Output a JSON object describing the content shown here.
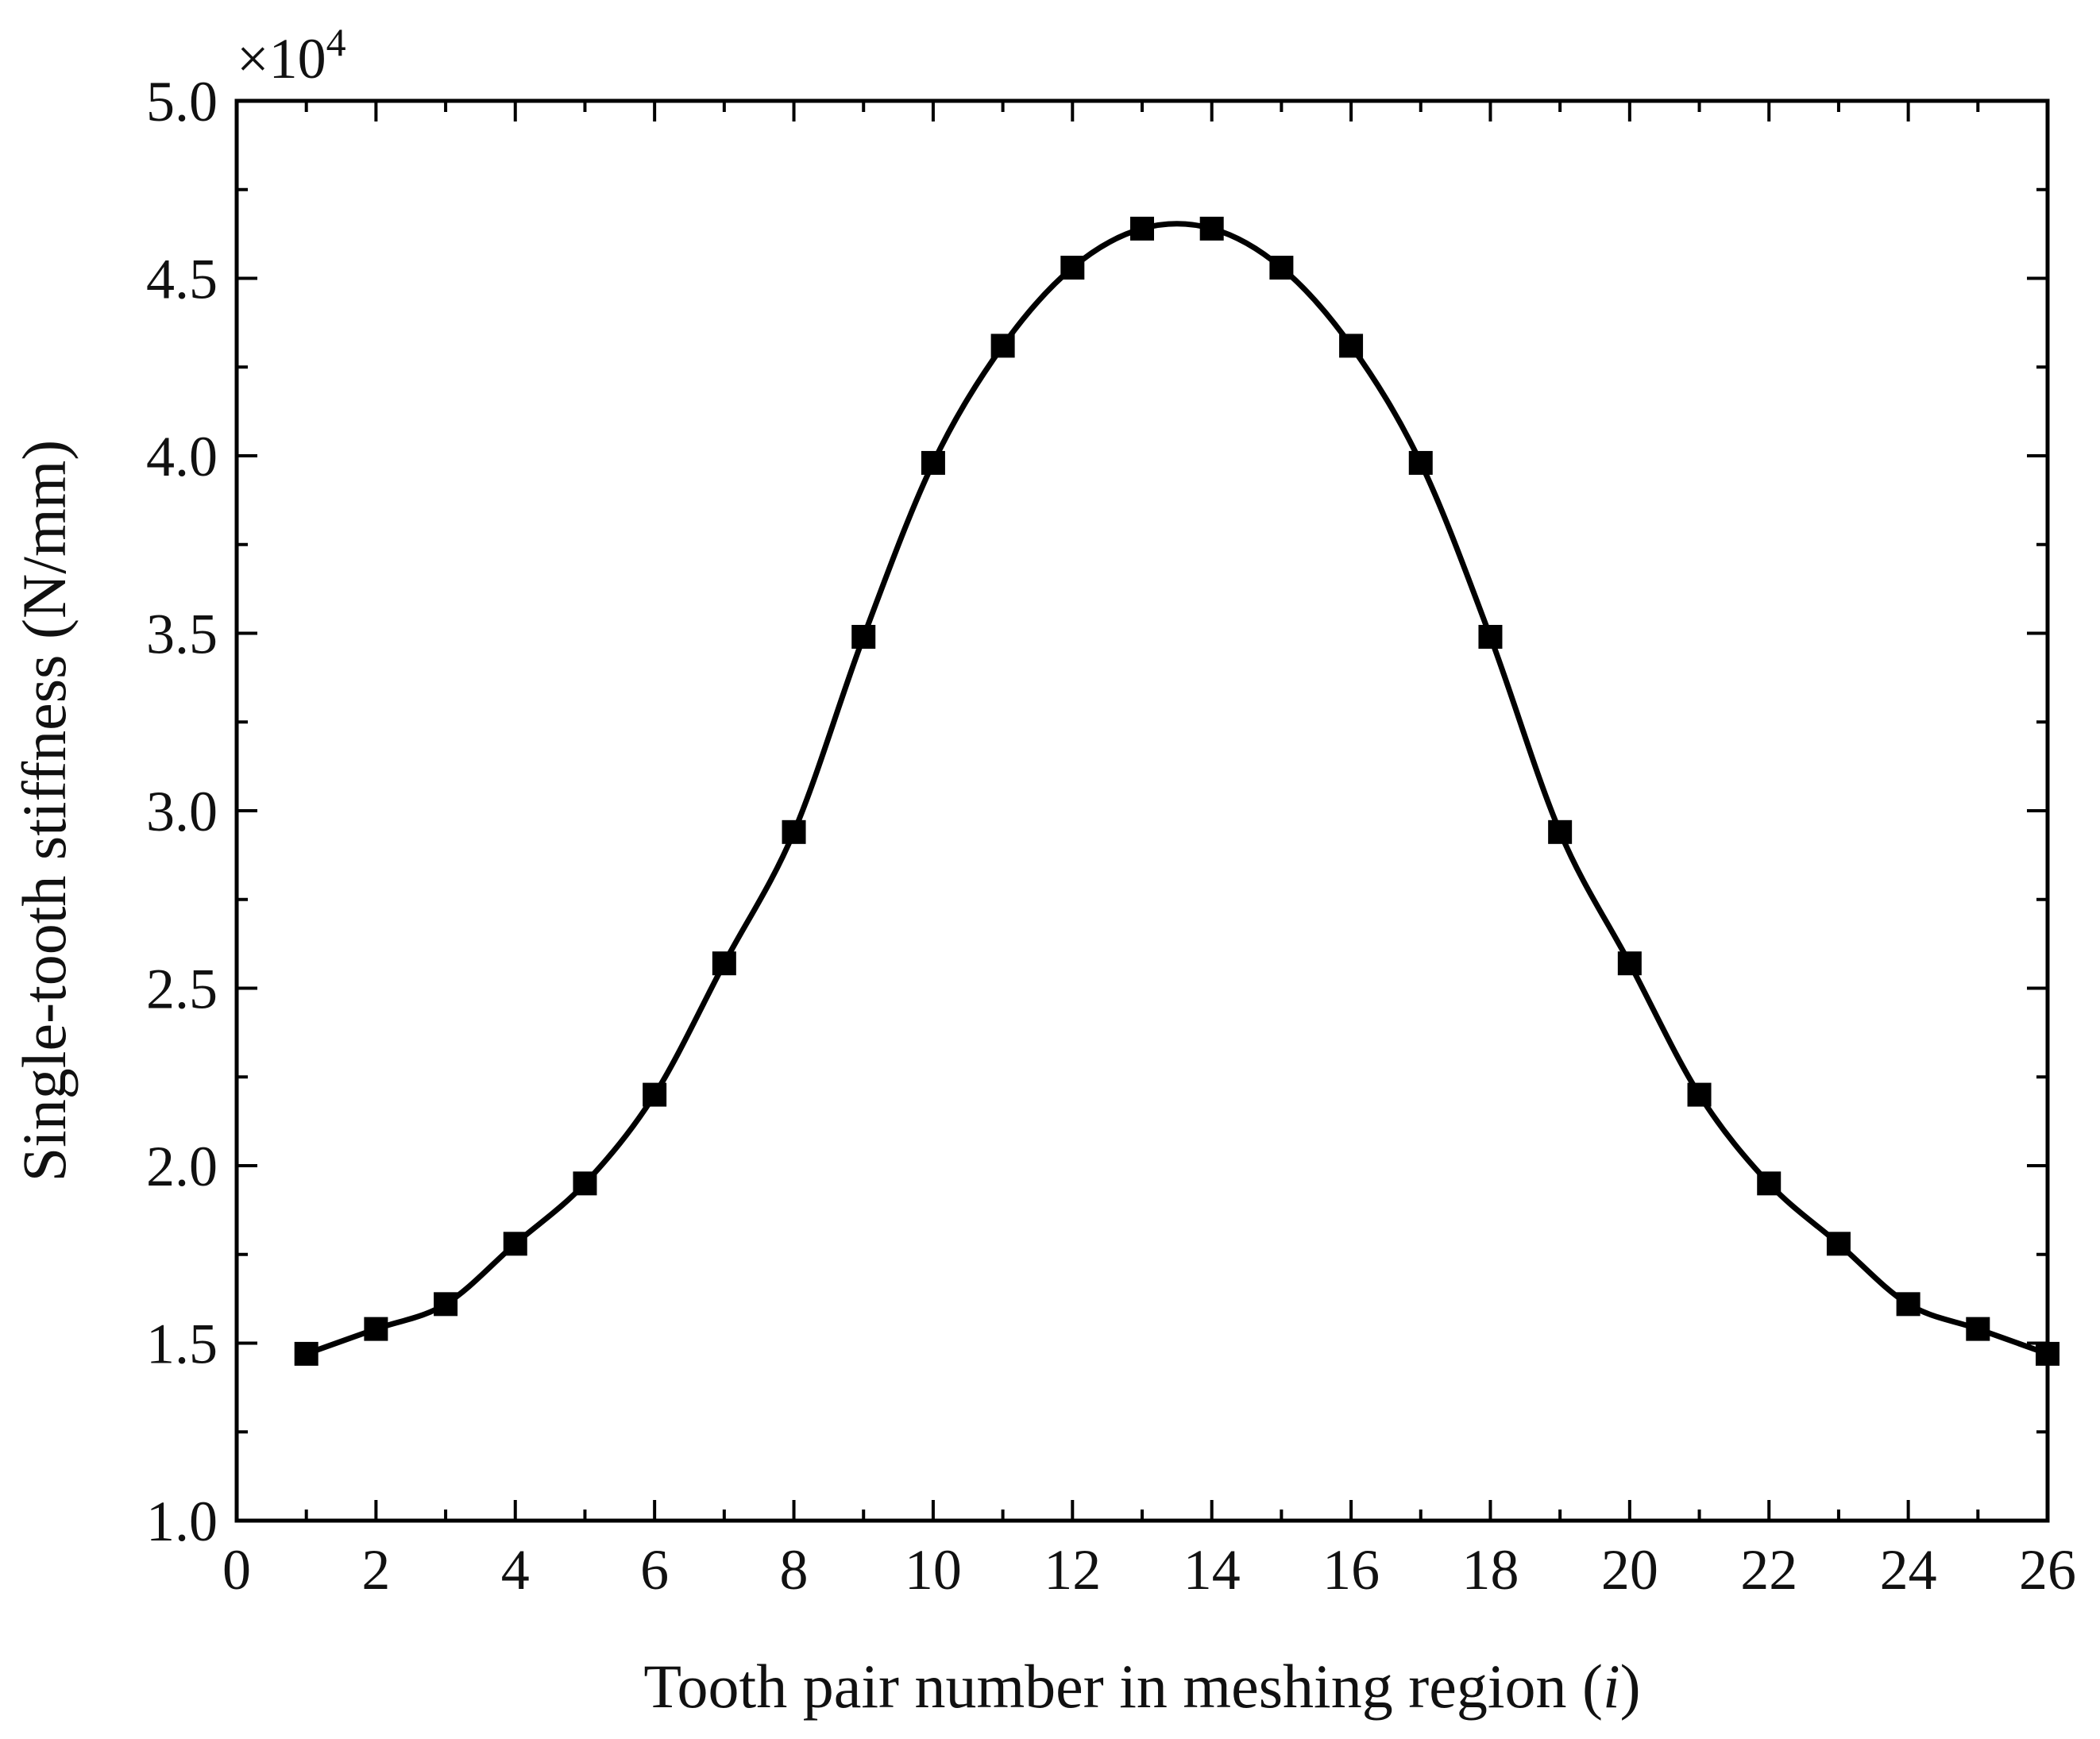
{
  "chart_data": {
    "type": "line",
    "title": "",
    "xlabel_main": "Tooth pair number in meshing region (",
    "xlabel_var": "i",
    "xlabel_end": ")",
    "ylabel": "Single-tooth stiffness (N/mm)",
    "y_multiplier_base": "×10",
    "y_multiplier_exp": "4",
    "xlim": [
      0,
      26
    ],
    "ylim": [
      1.0,
      5.0
    ],
    "x_ticks": [
      0,
      2,
      4,
      6,
      8,
      10,
      12,
      14,
      16,
      18,
      20,
      22,
      24,
      26
    ],
    "y_ticks": [
      "1.0",
      "1.5",
      "2.0",
      "2.5",
      "3.0",
      "3.5",
      "4.0",
      "4.5",
      "5.0"
    ],
    "grid": false,
    "marker": "square",
    "colors": {
      "line": "#000000",
      "marker": "#000000",
      "axis": "#000000"
    },
    "series": [
      {
        "x": [
          1,
          2,
          3,
          4,
          5,
          6,
          7,
          8,
          9,
          10,
          11,
          12,
          13,
          14,
          15,
          16,
          17,
          18,
          19,
          20,
          21,
          22,
          23,
          24,
          25,
          26
        ],
        "values": [
          1.47,
          1.54,
          1.61,
          1.78,
          1.95,
          2.2,
          2.57,
          2.94,
          3.49,
          3.98,
          4.31,
          4.53,
          4.64,
          4.64,
          4.53,
          4.31,
          3.98,
          3.49,
          2.94,
          2.57,
          2.2,
          1.95,
          1.78,
          1.61,
          1.54,
          1.47
        ]
      }
    ]
  }
}
